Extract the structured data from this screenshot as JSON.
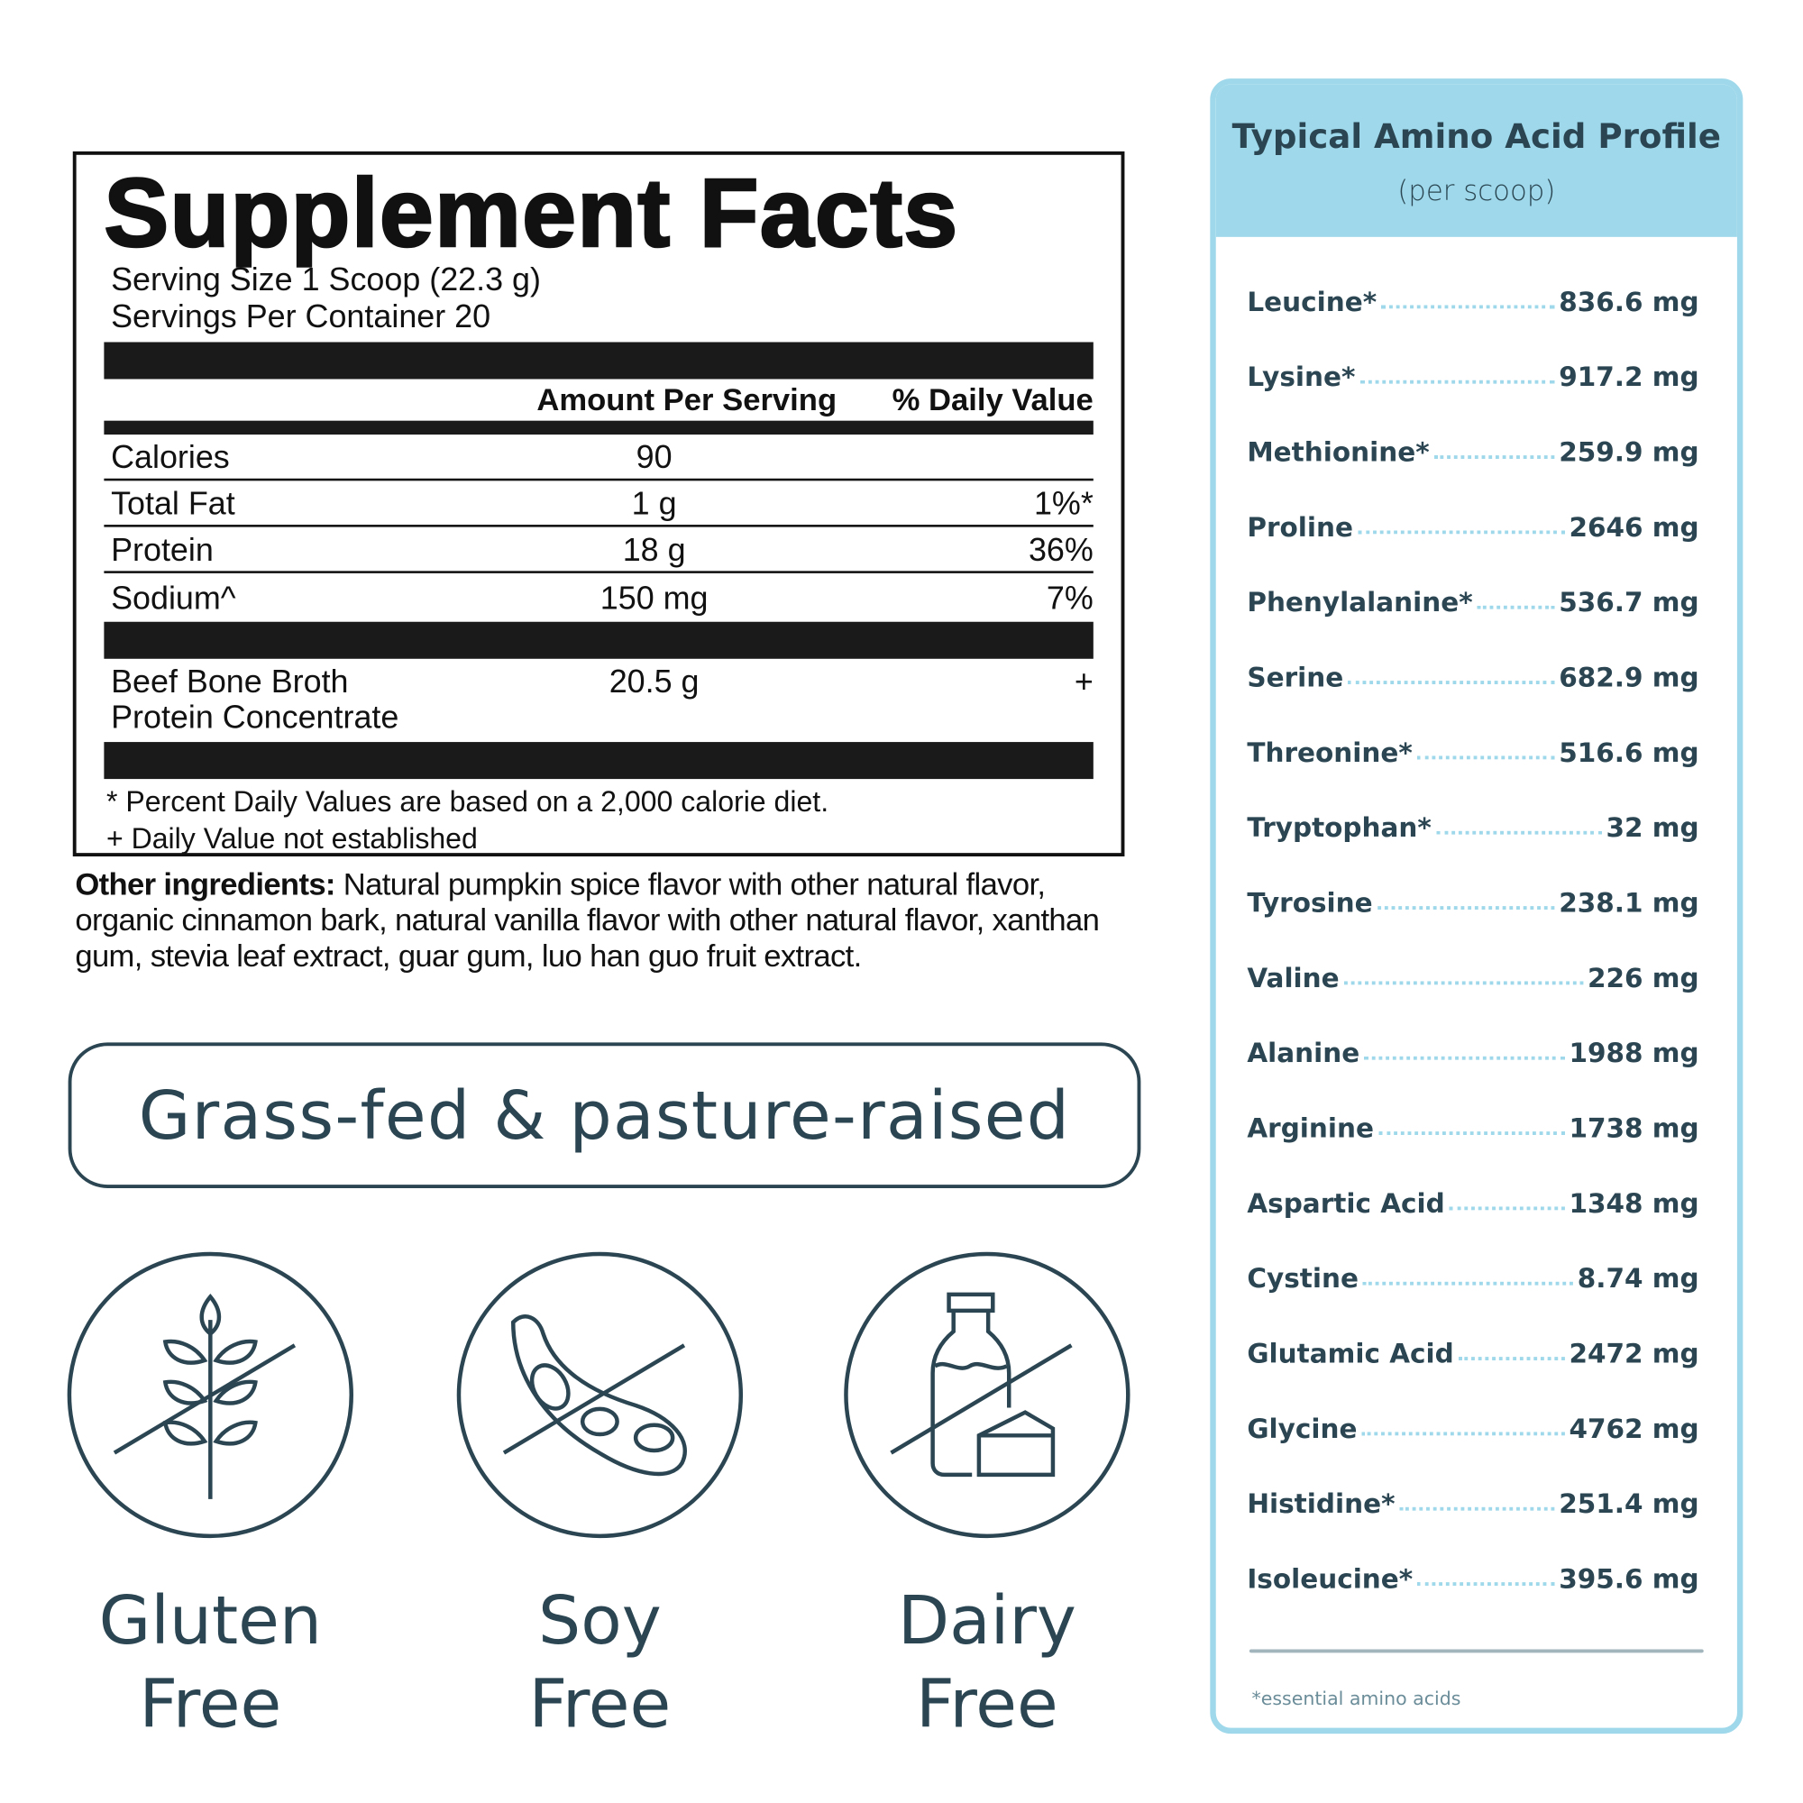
{
  "supplement_facts": {
    "title": "Supplement Facts",
    "serving_size": "Serving Size 1 Scoop (22.3 g)",
    "servings_per_container": "Servings Per Container 20",
    "col_amount": "Amount Per Serving",
    "col_dv": "% Daily Value",
    "rows": [
      {
        "name": "Calories",
        "amount": "90",
        "dv": ""
      },
      {
        "name": "Total Fat",
        "amount": "1 g",
        "dv": "1%*"
      },
      {
        "name": "Protein",
        "amount": "18 g",
        "dv": "36%"
      },
      {
        "name": "Sodium^",
        "amount": "150 mg",
        "dv": "7%"
      }
    ],
    "ingredient": {
      "name_line1": "Beef Bone Broth",
      "name_line2": "Protein Concentrate",
      "amount": "20.5 g",
      "dv": "+"
    },
    "footnote1": "* Percent Daily Values are based on a 2,000 calorie diet.",
    "footnote2": "+ Daily Value not established"
  },
  "other_ingredients": {
    "label": "Other ingredients:",
    "text": " Natural pumpkin spice flavor with other natural flavor, organic cinnamon bark, natural vanilla flavor with other natural flavor, xanthan gum, stevia leaf extract, guar gum, luo han guo fruit extract."
  },
  "claim": "Grass-fed & pasture-raised",
  "badges": [
    {
      "icon": "wheat-crossed-icon",
      "line1": "Gluten",
      "line2": "Free"
    },
    {
      "icon": "soybean-crossed-icon",
      "line1": "Soy",
      "line2": "Free"
    },
    {
      "icon": "milk-cheese-crossed-icon",
      "line1": "Dairy",
      "line2": "Free"
    }
  ],
  "amino": {
    "title": "Typical Amino Acid Profile",
    "subtitle": "(per scoop)",
    "items": [
      {
        "name": "Leucine*",
        "value": "836.6 mg"
      },
      {
        "name": "Lysine*",
        "value": "917.2 mg"
      },
      {
        "name": "Methionine*",
        "value": "259.9 mg"
      },
      {
        "name": "Proline",
        "value": "2646 mg"
      },
      {
        "name": "Phenylalanine*",
        "value": "536.7 mg"
      },
      {
        "name": "Serine",
        "value": "682.9 mg"
      },
      {
        "name": "Threonine*",
        "value": "516.6 mg"
      },
      {
        "name": "Tryptophan*",
        "value": "32 mg"
      },
      {
        "name": "Tyrosine",
        "value": "238.1 mg"
      },
      {
        "name": "Valine",
        "value": "226 mg"
      },
      {
        "name": "Alanine",
        "value": "1988 mg"
      },
      {
        "name": "Arginine",
        "value": "1738 mg"
      },
      {
        "name": "Aspartic Acid",
        "value": "1348 mg"
      },
      {
        "name": "Cystine",
        "value": "8.74 mg"
      },
      {
        "name": "Glutamic Acid",
        "value": "2472 mg"
      },
      {
        "name": "Glycine",
        "value": "4762 mg"
      },
      {
        "name": "Histidine*",
        "value": "251.4 mg"
      },
      {
        "name": "Isoleucine*",
        "value": "395.6 mg"
      }
    ],
    "note": "*essential amino acids"
  },
  "colors": {
    "accent": "#9ed8ea",
    "text_dark": "#2b4652",
    "label_black": "#111111"
  }
}
